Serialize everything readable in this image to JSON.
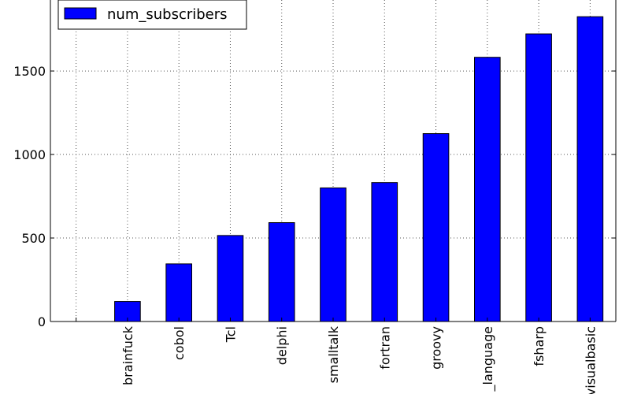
{
  "chart_data": {
    "type": "bar",
    "categories": [
      "",
      "brainfuck",
      "cobol",
      "Tcl",
      "delphi",
      "smalltalk",
      "fortran",
      "groovy",
      "_language",
      "fsharp",
      "visualbasic"
    ],
    "series": [
      {
        "name": "num_subscribers",
        "values": [
          0,
          120,
          345,
          515,
          592,
          800,
          832,
          1125,
          1582,
          1722,
          1825
        ]
      }
    ],
    "y_ticks": [
      "0",
      "500",
      "1000",
      "1500"
    ],
    "ylim": [
      0,
      1925
    ],
    "grid": true,
    "legend_position": "top-left",
    "colors": {
      "bar": "#0000ff",
      "bar_edge": "#000000",
      "grid": "#555555"
    }
  }
}
